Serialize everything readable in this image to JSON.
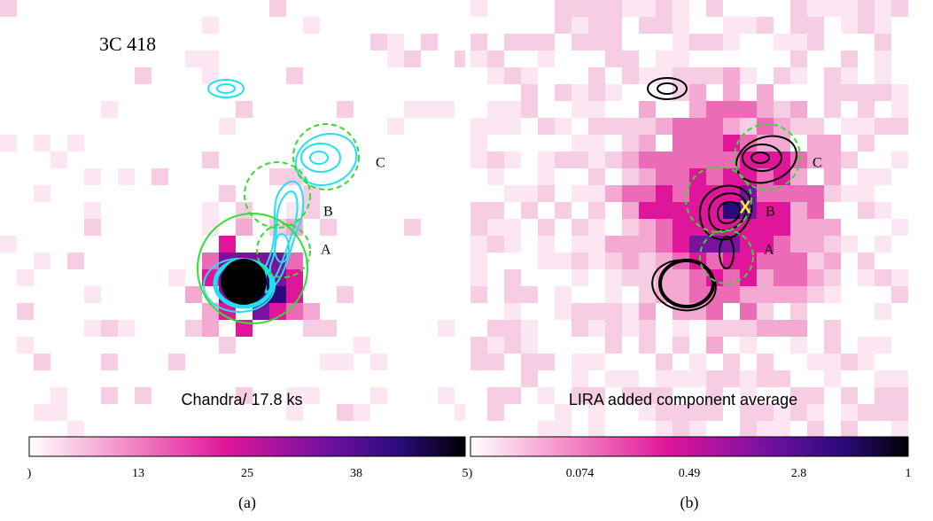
{
  "panels": [
    {
      "title": "3C 418",
      "caption": "Chandra/ 17.8 ks",
      "regions": [
        "A",
        "B",
        "C"
      ],
      "colorbar_ticks": [
        ")",
        "13",
        "25",
        "38",
        "5"
      ],
      "label": "(a)"
    },
    {
      "caption": "LIRA added component average",
      "regions": [
        "A",
        "B",
        "C"
      ],
      "marker": "X",
      "colorbar_ticks": [
        ")",
        "0.074",
        "0.49",
        "2.8",
        "1"
      ],
      "label": "(b)"
    }
  ]
}
